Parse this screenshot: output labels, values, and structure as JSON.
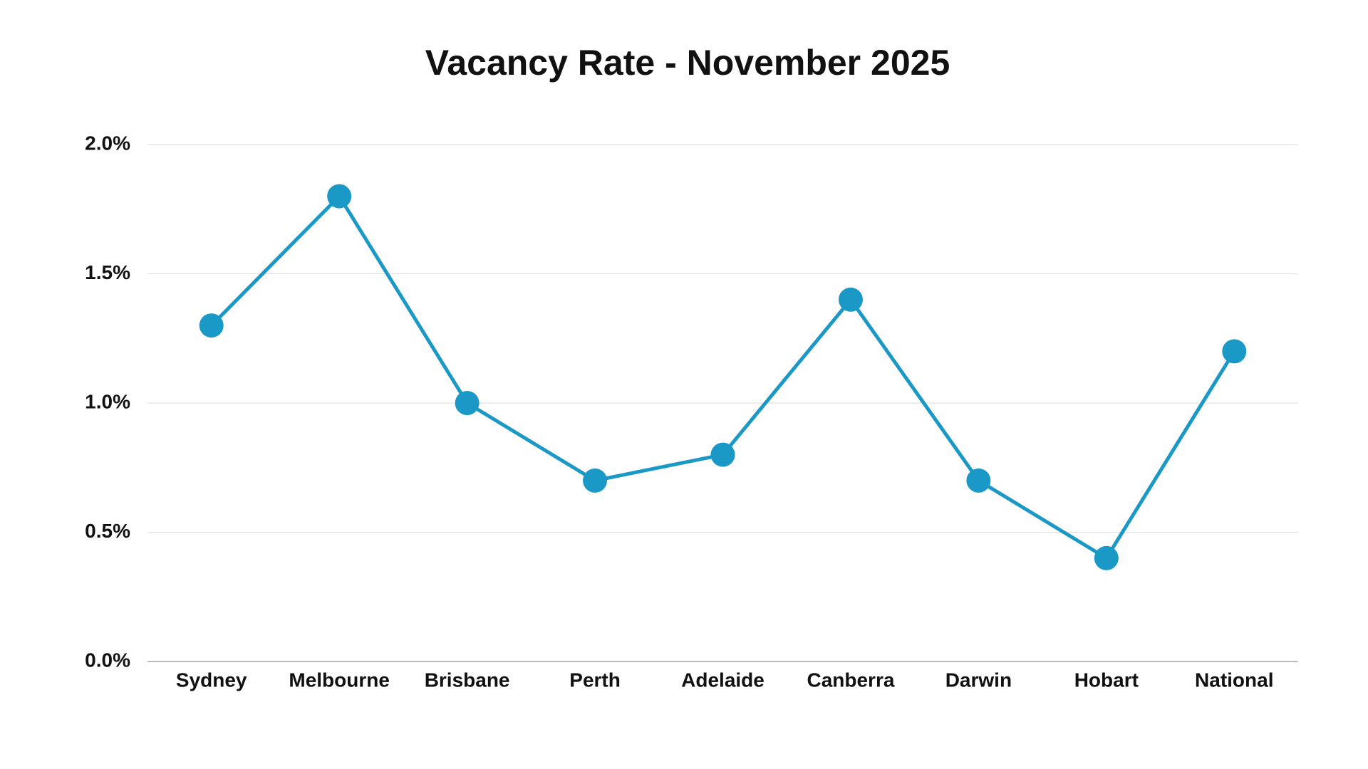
{
  "chart_data": {
    "type": "line",
    "title": "Vacancy Rate - November 2025",
    "categories": [
      "Sydney",
      "Melbourne",
      "Brisbane",
      "Perth",
      "Adelaide",
      "Canberra",
      "Darwin",
      "Hobart",
      "National"
    ],
    "values": [
      1.3,
      1.8,
      1.0,
      0.7,
      0.8,
      1.4,
      0.7,
      0.4,
      1.2
    ],
    "color": "#1a98c6",
    "ylim": [
      0,
      2
    ],
    "yticks": [
      {
        "value": 0,
        "label": "0.0%"
      },
      {
        "value": 0.5,
        "label": "0.5%"
      },
      {
        "value": 1,
        "label": "1.0%"
      },
      {
        "value": 1.5,
        "label": "1.5%"
      },
      {
        "value": 2,
        "label": "2.0%"
      }
    ],
    "grid": true
  }
}
